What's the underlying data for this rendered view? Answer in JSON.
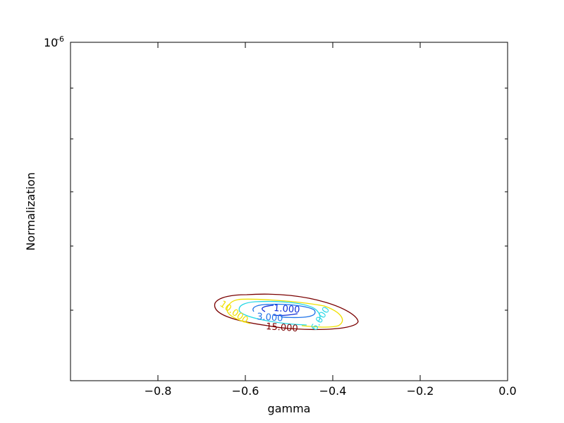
{
  "chart_data": {
    "type": "contour",
    "xlabel": "gamma",
    "ylabel": "Normalization",
    "xlim": [
      -1.0,
      0.0
    ],
    "y_scale": "log",
    "y_top_label_base": "10",
    "y_top_label_exp": "-6",
    "x_ticks": [
      {
        "value": -0.8,
        "label": "−0.8"
      },
      {
        "value": -0.6,
        "label": "−0.6"
      },
      {
        "value": -0.4,
        "label": "−0.4"
      },
      {
        "value": -0.2,
        "label": "−0.2"
      },
      {
        "value": 0.0,
        "label": "0.0"
      }
    ],
    "grid": false,
    "contours": [
      {
        "level": 1,
        "label": "1.000",
        "color": "#0a2ad6"
      },
      {
        "level": 3,
        "label": "3.000",
        "color": "#27d7e6"
      },
      {
        "level": 6,
        "label": "6.000",
        "color": "#f4e400"
      },
      {
        "level": 10,
        "label": "10.000",
        "color": "#f0e000"
      },
      {
        "level": 15,
        "label": "15.000",
        "color": "#7a0000"
      }
    ],
    "minimum": {
      "gamma": -0.5
    }
  }
}
